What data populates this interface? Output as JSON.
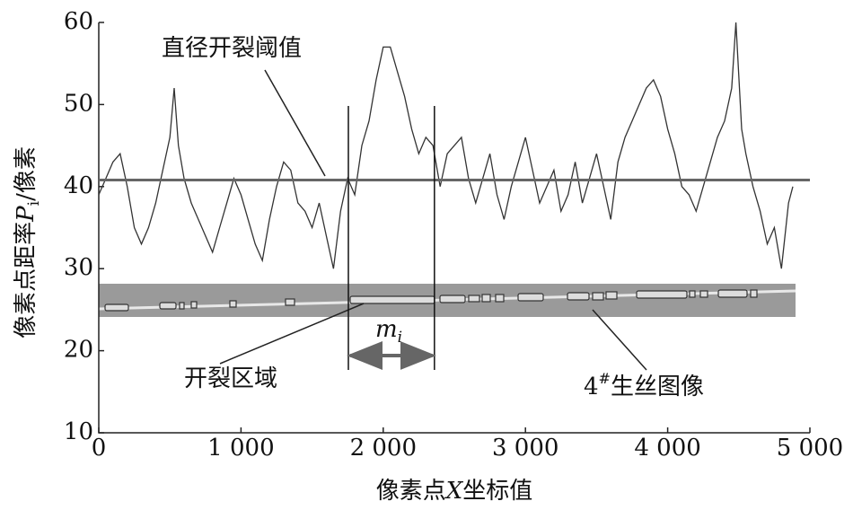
{
  "chart_data": {
    "type": "line",
    "ylabel": [
      "像素点距率",
      "P",
      "i",
      "/像素"
    ],
    "xlabel": [
      "像素点",
      "X",
      "坐标值"
    ],
    "annotations": {
      "threshold_label": "直径开裂阈值",
      "crack_label": "开裂区域",
      "image_label": [
        "4",
        "#",
        "生丝图像"
      ],
      "width_label": [
        "m",
        "i"
      ]
    },
    "color": "#333333",
    "threshold": 40.8,
    "threshold_color": "#666666",
    "region": [
      1755,
      2360
    ],
    "x": [
      0,
      50,
      100,
      150,
      200,
      250,
      300,
      350,
      400,
      450,
      500,
      530,
      560,
      600,
      650,
      700,
      750,
      800,
      850,
      900,
      950,
      1000,
      1050,
      1100,
      1150,
      1200,
      1250,
      1300,
      1350,
      1400,
      1450,
      1500,
      1550,
      1600,
      1650,
      1700,
      1750,
      1800,
      1850,
      1900,
      1950,
      2000,
      2050,
      2100,
      2150,
      2200,
      2250,
      2300,
      2350,
      2400,
      2450,
      2500,
      2550,
      2600,
      2650,
      2700,
      2750,
      2800,
      2850,
      2900,
      2950,
      3000,
      3050,
      3100,
      3150,
      3200,
      3250,
      3300,
      3350,
      3400,
      3450,
      3500,
      3550,
      3600,
      3650,
      3700,
      3750,
      3800,
      3850,
      3900,
      3950,
      4000,
      4050,
      4100,
      4150,
      4200,
      4250,
      4300,
      4350,
      4400,
      4450,
      4480,
      4520,
      4550,
      4600,
      4650,
      4700,
      4750,
      4800,
      4850,
      4880
    ],
    "values": [
      39,
      41,
      43,
      44,
      40,
      35,
      33,
      35,
      38,
      42,
      46,
      52,
      45,
      41,
      38,
      36,
      34,
      32,
      35,
      38,
      41,
      39,
      36,
      33,
      31,
      36,
      40,
      43,
      42,
      38,
      37,
      35,
      38,
      34,
      30,
      37,
      41,
      39,
      45,
      48,
      53,
      57,
      57,
      54,
      51,
      47,
      44,
      46,
      45,
      40,
      44,
      45,
      46,
      41,
      38,
      41,
      44,
      39,
      36,
      40,
      43,
      46,
      42,
      38,
      40,
      42,
      37,
      39,
      43,
      38,
      41,
      44,
      40,
      36,
      43,
      46,
      48,
      50,
      52,
      53,
      51,
      47,
      44,
      40,
      39,
      37,
      40,
      43,
      46,
      48,
      52,
      60,
      47,
      44,
      40,
      37,
      33,
      35,
      30,
      38,
      40
    ],
    "xlim": [
      0,
      5000
    ],
    "ylim": [
      10,
      60
    ],
    "xticks": [
      0,
      {
        "value": 1000,
        "label": "1 000"
      },
      {
        "value": 2000,
        "label": "2 000"
      },
      {
        "value": 3000,
        "label": "3 000"
      },
      {
        "value": 4000,
        "label": "4 000"
      },
      {
        "value": 5000,
        "label": "5 000"
      }
    ],
    "yticks": [
      10,
      20,
      30,
      40,
      50,
      60
    ]
  }
}
